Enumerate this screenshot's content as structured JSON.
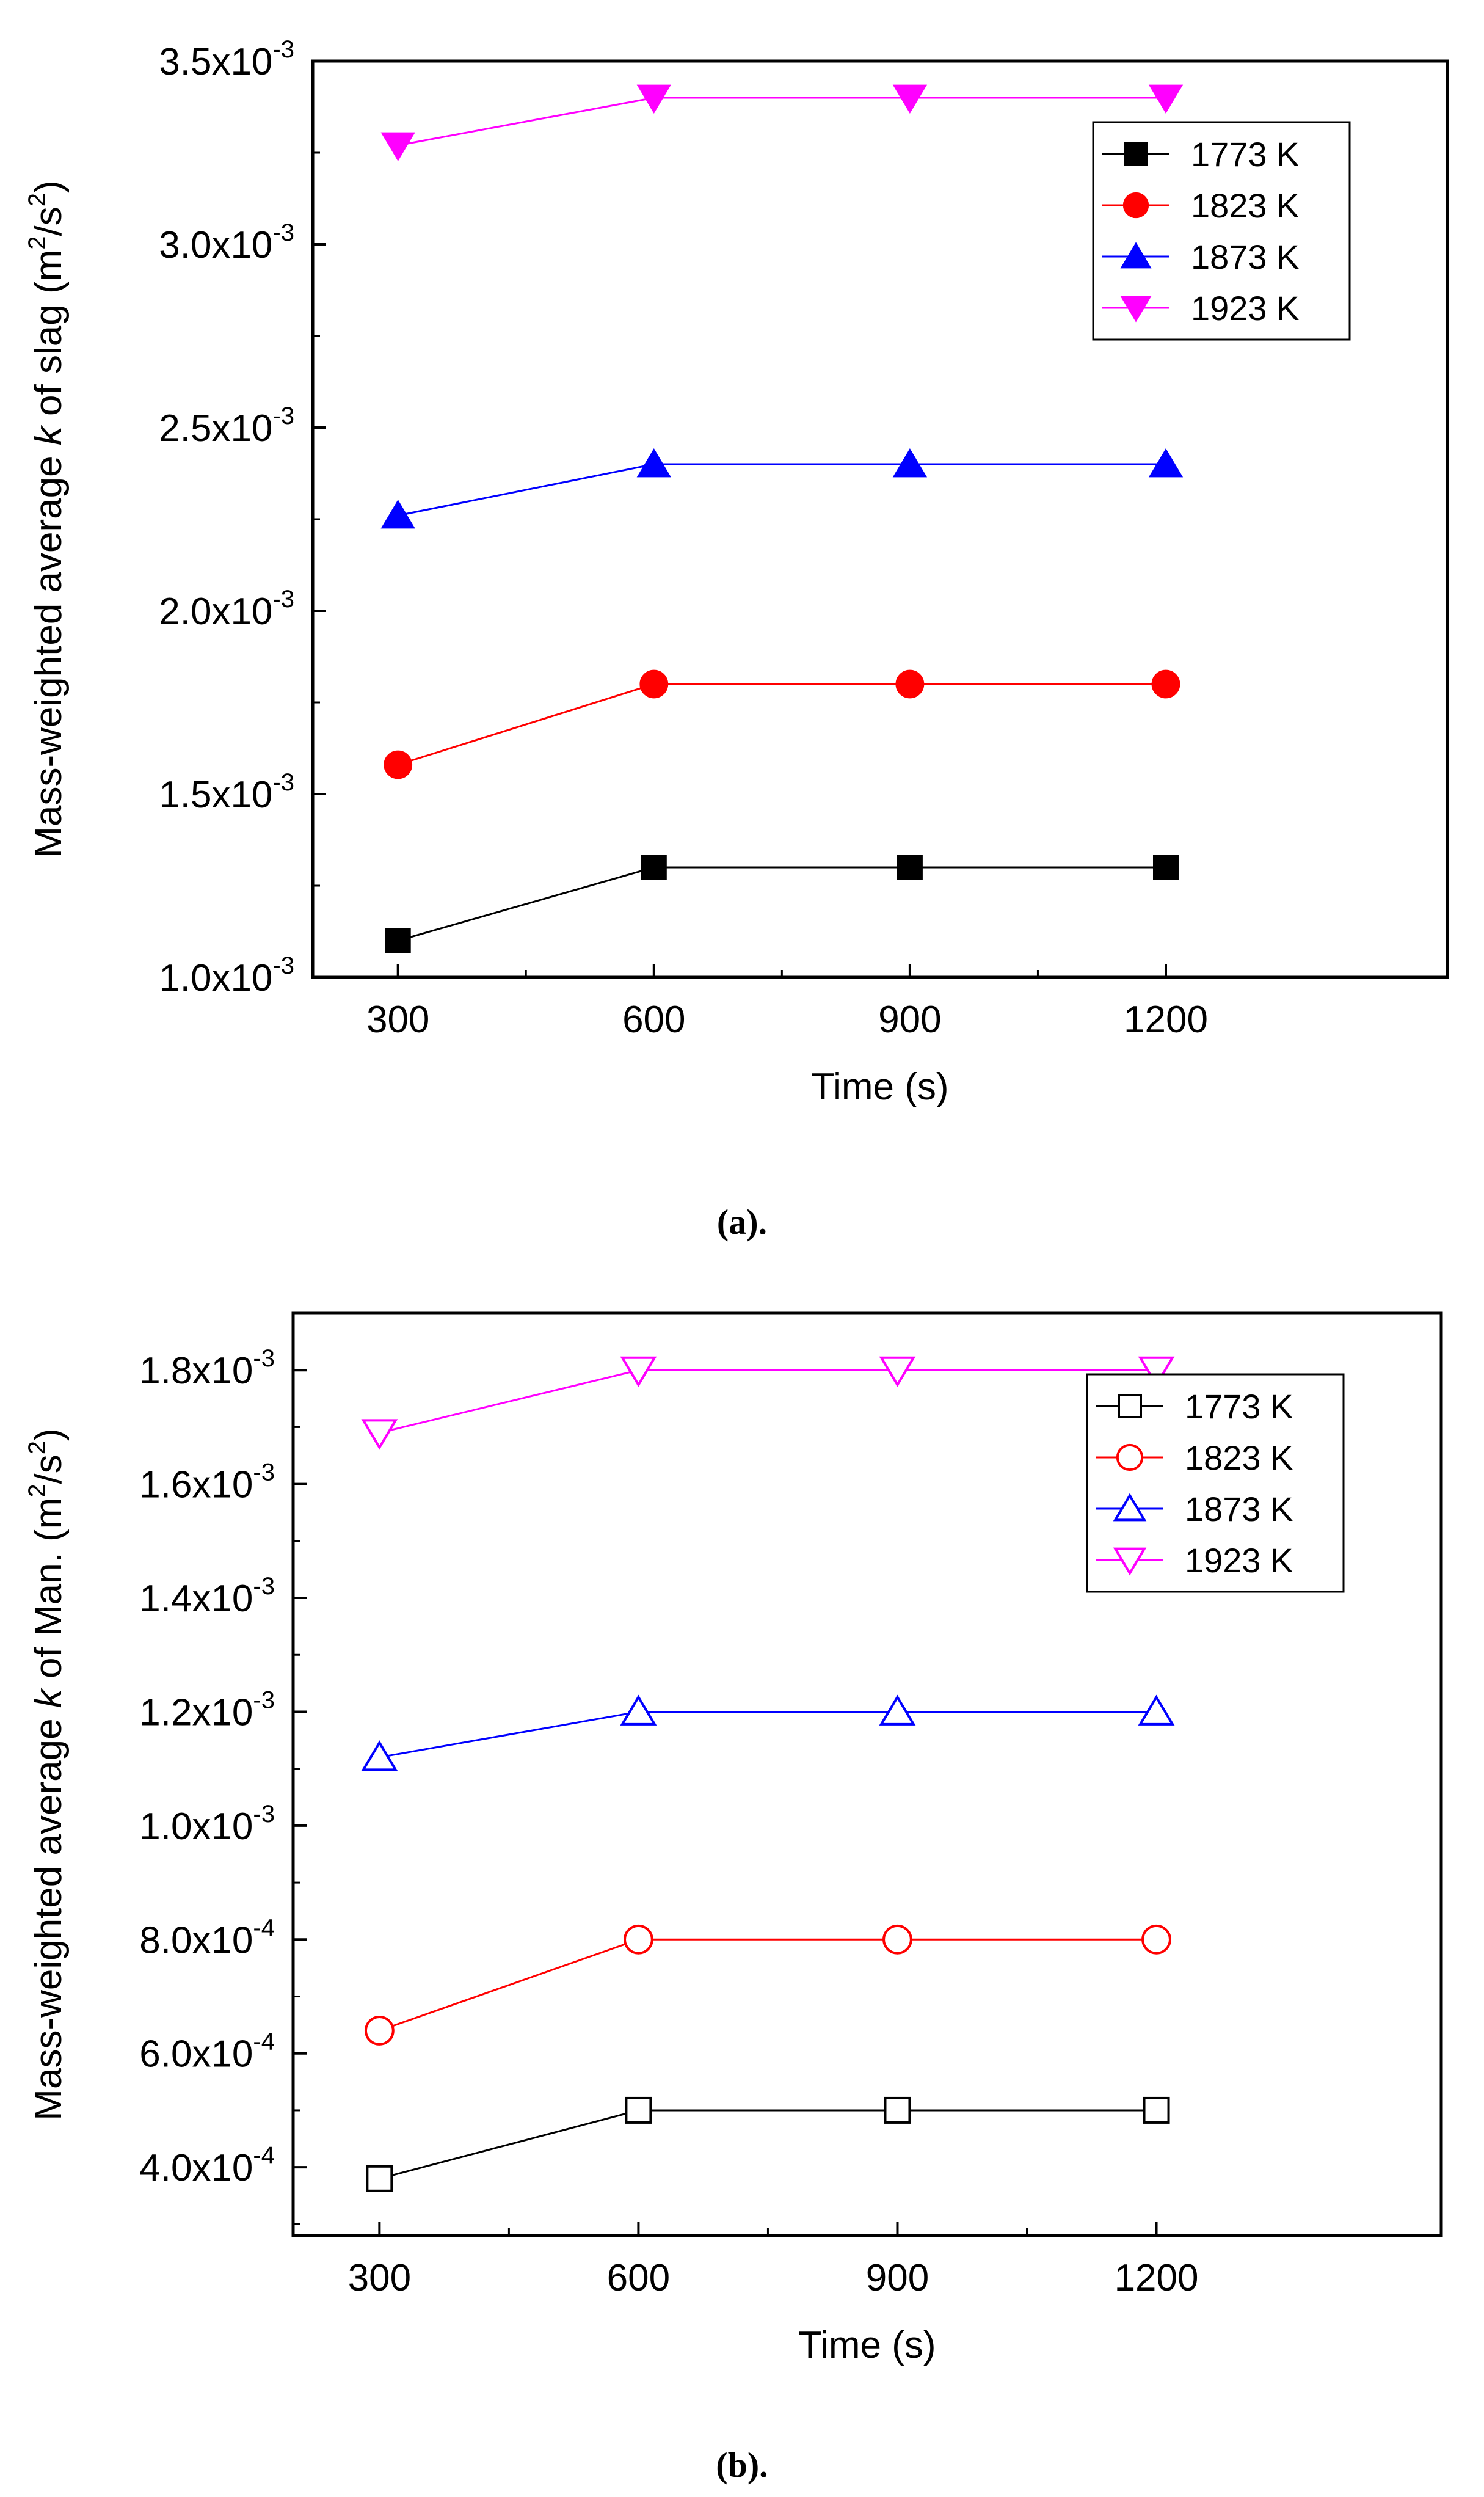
{
  "chart_data": [
    {
      "type": "line",
      "caption": "(a).",
      "x": [
        300,
        600,
        900,
        1200
      ],
      "xlabel": "Time (s)",
      "ylabel": {
        "pre": "Mass-weighted average ",
        "italic": "k",
        "mid": " of slag (m",
        "sup1": "2",
        "slash": "/s",
        "sup2": "2",
        "post": ")"
      },
      "xlim": [
        200,
        1530
      ],
      "ylim": [
        0.001,
        0.0035
      ],
      "xticks": [
        {
          "value": 300,
          "label": "300"
        },
        {
          "value": 600,
          "label": "600"
        },
        {
          "value": 900,
          "label": "900"
        },
        {
          "value": 1200,
          "label": "1200"
        }
      ],
      "yticks": [
        {
          "value": 0.001,
          "mant": "1.0x10",
          "exp": "-3"
        },
        {
          "value": 0.0015,
          "mant": "1.5x10",
          "exp": "-3"
        },
        {
          "value": 0.002,
          "mant": "2.0x10",
          "exp": "-3"
        },
        {
          "value": 0.0025,
          "mant": "2.5x10",
          "exp": "-3"
        },
        {
          "value": 0.003,
          "mant": "3.0x10",
          "exp": "-3"
        },
        {
          "value": 0.0035,
          "mant": "3.5x10",
          "exp": "-3"
        }
      ],
      "minor_yticks": [
        0.00125,
        0.00175,
        0.00225,
        0.00275,
        0.00325
      ],
      "legend_position": "top-right",
      "series": [
        {
          "name": "1773 K",
          "color": "#000000",
          "marker": "square",
          "filled": true,
          "values": [
            0.0011,
            0.0013,
            0.0013,
            0.0013
          ]
        },
        {
          "name": "1823 K",
          "color": "#ff0000",
          "marker": "circle",
          "filled": true,
          "values": [
            0.00158,
            0.0018,
            0.0018,
            0.0018
          ]
        },
        {
          "name": "1873 K",
          "color": "#0000ff",
          "marker": "triangle-up",
          "filled": true,
          "values": [
            0.00226,
            0.0024,
            0.0024,
            0.0024
          ]
        },
        {
          "name": "1923 K",
          "color": "#ff00ff",
          "marker": "triangle-down",
          "filled": true,
          "values": [
            0.00327,
            0.0034,
            0.0034,
            0.0034
          ]
        }
      ]
    },
    {
      "type": "line",
      "caption": "(b).",
      "x": [
        300,
        600,
        900,
        1200
      ],
      "xlabel": "Time (s)",
      "ylabel": {
        "pre": "Mass-weighted average ",
        "italic": "k",
        "mid": " of Man. (m",
        "sup1": "2",
        "slash": "/s",
        "sup2": "2",
        "post": ")"
      },
      "xlim": [
        200,
        1530
      ],
      "ylim": [
        0.00028,
        0.0019
      ],
      "xticks": [
        {
          "value": 300,
          "label": "300"
        },
        {
          "value": 600,
          "label": "600"
        },
        {
          "value": 900,
          "label": "900"
        },
        {
          "value": 1200,
          "label": "1200"
        }
      ],
      "yticks": [
        {
          "value": 0.0004,
          "mant": "4.0x10",
          "exp": "-4"
        },
        {
          "value": 0.0006,
          "mant": "6.0x10",
          "exp": "-4"
        },
        {
          "value": 0.0008,
          "mant": "8.0x10",
          "exp": "-4"
        },
        {
          "value": 0.001,
          "mant": "1.0x10",
          "exp": "-3"
        },
        {
          "value": 0.0012,
          "mant": "1.2x10",
          "exp": "-3"
        },
        {
          "value": 0.0014,
          "mant": "1.4x10",
          "exp": "-3"
        },
        {
          "value": 0.0016,
          "mant": "1.6x10",
          "exp": "-3"
        },
        {
          "value": 0.0018,
          "mant": "1.8x10",
          "exp": "-3"
        }
      ],
      "minor_yticks": [
        0.0003,
        0.0005,
        0.0007,
        0.0009,
        0.0011,
        0.0013,
        0.0015,
        0.0017,
        0.0019
      ],
      "legend_position": "top-right",
      "series": [
        {
          "name": "1773 K",
          "color": "#000000",
          "marker": "square",
          "filled": false,
          "values": [
            0.00038,
            0.0005,
            0.0005,
            0.0005
          ]
        },
        {
          "name": "1823 K",
          "color": "#ff0000",
          "marker": "circle",
          "filled": false,
          "values": [
            0.00064,
            0.0008,
            0.0008,
            0.0008
          ]
        },
        {
          "name": "1873 K",
          "color": "#0000ff",
          "marker": "triangle-up",
          "filled": false,
          "values": [
            0.00112,
            0.0012,
            0.0012,
            0.0012
          ]
        },
        {
          "name": "1923 K",
          "color": "#ff00ff",
          "marker": "triangle-down",
          "filled": false,
          "values": [
            0.00169,
            0.0018,
            0.0018,
            0.0018
          ]
        }
      ]
    }
  ]
}
